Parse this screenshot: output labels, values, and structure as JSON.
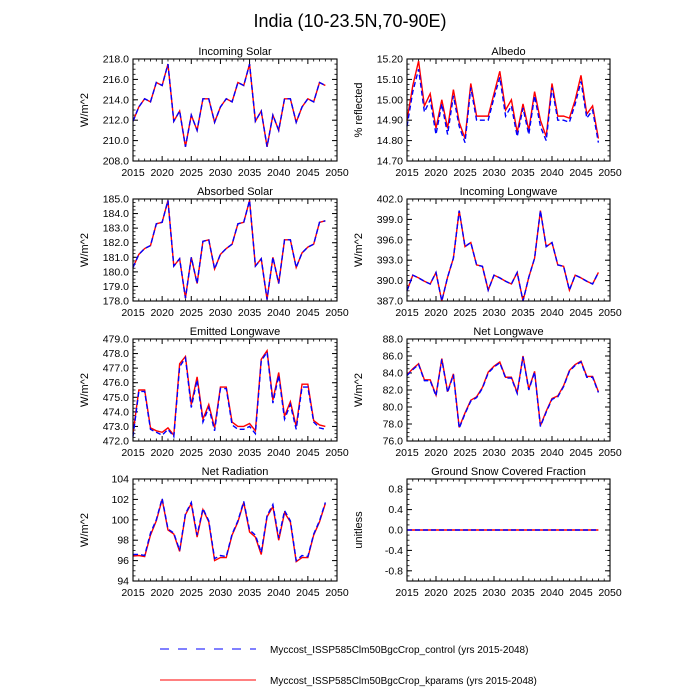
{
  "title": "India (10-23.5N,70-90E)",
  "colors": {
    "control": "#0000ff",
    "kparams": "#ff0000"
  },
  "legend": [
    {
      "label": "Myccost_ISSP585Clm50BgcCrop_control (yrs 2015-2048)",
      "style": "dashed",
      "color": "#0000ff"
    },
    {
      "label": "Myccost_ISSP585Clm50BgcCrop_kparams (yrs 2015-2048)",
      "style": "solid",
      "color": "#ff0000"
    }
  ],
  "chart_data": [
    {
      "type": "line",
      "title": "Incoming Solar",
      "ylabel": "W/m^2",
      "xlim": [
        2015,
        2050
      ],
      "ylim": [
        208,
        218
      ],
      "xticks": [
        "2015",
        "2020",
        "2025",
        "2030",
        "2035",
        "2040",
        "2045",
        "2050"
      ],
      "yticks": [
        "208.0",
        "210.0",
        "212.0",
        "214.0",
        "216.0",
        "218.0"
      ],
      "ytick_values": [
        208,
        210,
        212,
        214,
        216,
        218
      ],
      "x_start": 2015,
      "series": [
        {
          "name": "kparams",
          "values": [
            211.9,
            213.3,
            214.1,
            213.8,
            215.7,
            215.4,
            217.5,
            211.9,
            212.9,
            209.4,
            212.5,
            211.0,
            214.1,
            214.1,
            211.8,
            213.3,
            214.1,
            213.8,
            215.7,
            215.4,
            217.5,
            211.9,
            212.9,
            209.4,
            212.5,
            211.0,
            214.1,
            214.1,
            211.8,
            213.3,
            214.1,
            213.8,
            215.7,
            215.4
          ]
        },
        {
          "name": "control",
          "values": [
            211.9,
            213.3,
            214.1,
            213.8,
            215.7,
            215.4,
            217.5,
            211.9,
            212.9,
            209.4,
            212.5,
            211.0,
            214.1,
            214.1,
            211.8,
            213.3,
            214.1,
            213.8,
            215.7,
            215.4,
            217.5,
            211.9,
            212.9,
            209.4,
            212.5,
            211.0,
            214.1,
            214.1,
            211.8,
            213.3,
            214.1,
            213.8,
            215.7,
            215.4
          ]
        }
      ]
    },
    {
      "type": "line",
      "title": "Albedo",
      "ylabel": "% reflected",
      "xlim": [
        2015,
        2050
      ],
      "ylim": [
        14.7,
        15.2
      ],
      "xticks": [
        "2015",
        "2020",
        "2025",
        "2030",
        "2035",
        "2040",
        "2045",
        "2050"
      ],
      "yticks": [
        "14.70",
        "14.80",
        "14.90",
        "15.00",
        "15.10",
        "15.20"
      ],
      "ytick_values": [
        14.7,
        14.8,
        14.9,
        15.0,
        15.1,
        15.2
      ],
      "x_start": 2015,
      "series": [
        {
          "name": "kparams",
          "values": [
            14.9,
            15.07,
            15.19,
            14.97,
            15.03,
            14.86,
            15.0,
            14.86,
            15.05,
            14.89,
            14.81,
            15.08,
            14.92,
            14.92,
            14.92,
            15.03,
            15.14,
            14.95,
            15.0,
            14.84,
            14.98,
            14.85,
            15.04,
            14.9,
            14.82,
            15.08,
            14.92,
            14.92,
            14.91,
            15.0,
            15.12,
            14.93,
            14.97,
            14.81
          ]
        },
        {
          "name": "control",
          "values": [
            14.87,
            15.04,
            15.15,
            14.94,
            15.0,
            14.83,
            14.98,
            14.83,
            15.02,
            14.87,
            14.79,
            15.06,
            14.9,
            14.9,
            14.9,
            15.01,
            15.11,
            14.92,
            14.97,
            14.82,
            14.96,
            14.83,
            15.02,
            14.87,
            14.8,
            15.06,
            14.9,
            14.9,
            14.89,
            14.98,
            15.09,
            14.91,
            14.95,
            14.79
          ]
        }
      ]
    },
    {
      "type": "line",
      "title": "Absorbed Solar",
      "ylabel": "W/m^2",
      "xlim": [
        2015,
        2050
      ],
      "ylim": [
        178,
        185
      ],
      "xticks": [
        "2015",
        "2020",
        "2025",
        "2030",
        "2035",
        "2040",
        "2045",
        "2050"
      ],
      "yticks": [
        "178.0",
        "179.0",
        "180.0",
        "181.0",
        "182.0",
        "183.0",
        "184.0",
        "185.0"
      ],
      "ytick_values": [
        178,
        179,
        180,
        181,
        182,
        183,
        184,
        185
      ],
      "x_start": 2015,
      "series": [
        {
          "name": "kparams",
          "values": [
            180.3,
            181.2,
            181.6,
            181.8,
            183.3,
            183.4,
            184.9,
            180.4,
            180.9,
            178.2,
            181.0,
            179.2,
            182.1,
            182.2,
            180.2,
            181.2,
            181.6,
            181.9,
            183.3,
            183.4,
            184.9,
            180.4,
            180.9,
            178.1,
            181.0,
            179.2,
            182.2,
            182.2,
            180.3,
            181.3,
            181.7,
            181.9,
            183.4,
            183.5
          ]
        },
        {
          "name": "control",
          "values": [
            180.3,
            181.2,
            181.6,
            181.8,
            183.3,
            183.4,
            184.9,
            180.4,
            180.9,
            178.2,
            181.0,
            179.2,
            182.1,
            182.2,
            180.2,
            181.2,
            181.6,
            181.9,
            183.3,
            183.4,
            184.9,
            180.4,
            180.9,
            178.1,
            181.0,
            179.2,
            182.2,
            182.2,
            180.3,
            181.3,
            181.7,
            181.9,
            183.4,
            183.5
          ]
        }
      ]
    },
    {
      "type": "line",
      "title": "Incoming Longwave",
      "ylabel": "W/m^2",
      "xlim": [
        2015,
        2050
      ],
      "ylim": [
        387,
        402
      ],
      "xticks": [
        "2015",
        "2020",
        "2025",
        "2030",
        "2035",
        "2040",
        "2045",
        "2050"
      ],
      "yticks": [
        "387.0",
        "390.0",
        "393.0",
        "396.0",
        "399.0",
        "402.0"
      ],
      "ytick_values": [
        387,
        390,
        393,
        396,
        399,
        402
      ],
      "x_start": 2015,
      "series": [
        {
          "name": "kparams",
          "values": [
            388.5,
            390.8,
            390.4,
            389.9,
            389.5,
            391.2,
            387.0,
            390.5,
            393.3,
            400.3,
            395.0,
            395.6,
            392.3,
            392.1,
            388.6,
            390.8,
            390.4,
            389.9,
            389.5,
            391.2,
            387.0,
            390.5,
            393.3,
            400.3,
            395.0,
            395.6,
            392.3,
            392.1,
            388.6,
            390.8,
            390.4,
            389.9,
            389.5,
            391.2
          ]
        },
        {
          "name": "control",
          "values": [
            388.5,
            390.8,
            390.4,
            389.9,
            389.5,
            391.2,
            387.0,
            390.5,
            393.3,
            400.3,
            395.0,
            395.6,
            392.3,
            392.1,
            388.6,
            390.8,
            390.4,
            389.9,
            389.5,
            391.2,
            387.0,
            390.5,
            393.3,
            400.3,
            395.0,
            395.6,
            392.3,
            392.1,
            388.6,
            390.8,
            390.4,
            389.9,
            389.5,
            391.2
          ]
        }
      ]
    },
    {
      "type": "line",
      "title": "Emitted Longwave",
      "ylabel": "W/m^2",
      "xlim": [
        2015,
        2050
      ],
      "ylim": [
        472,
        479
      ],
      "xticks": [
        "2015",
        "2020",
        "2025",
        "2030",
        "2035",
        "2040",
        "2045",
        "2050"
      ],
      "yticks": [
        "472.0",
        "473.0",
        "474.0",
        "475.0",
        "476.0",
        "477.0",
        "478.0",
        "479.0"
      ],
      "ytick_values": [
        472,
        473,
        474,
        475,
        476,
        477,
        478,
        479
      ],
      "x_start": 2015,
      "series": [
        {
          "name": "kparams",
          "values": [
            472.5,
            475.5,
            475.5,
            472.9,
            472.7,
            472.6,
            472.9,
            472.4,
            477.3,
            477.8,
            474.5,
            476.4,
            473.5,
            474.5,
            472.9,
            475.7,
            475.7,
            473.3,
            473.0,
            473.0,
            473.2,
            472.7,
            477.6,
            478.2,
            474.8,
            476.7,
            473.7,
            474.7,
            473.0,
            475.9,
            475.9,
            473.4,
            473.1,
            473.0
          ]
        },
        {
          "name": "control",
          "values": [
            472.3,
            475.4,
            475.4,
            472.8,
            472.6,
            472.4,
            472.8,
            472.3,
            477.1,
            477.7,
            474.3,
            476.2,
            473.3,
            474.3,
            472.7,
            475.6,
            475.6,
            473.1,
            472.8,
            472.8,
            473.0,
            472.5,
            477.5,
            478.1,
            474.6,
            476.5,
            473.5,
            474.5,
            472.8,
            475.7,
            475.7,
            473.3,
            472.9,
            472.8
          ]
        }
      ]
    },
    {
      "type": "line",
      "title": "Net Longwave",
      "ylabel": "W/m^2",
      "xlim": [
        2015,
        2050
      ],
      "ylim": [
        76,
        88
      ],
      "xticks": [
        "2015",
        "2020",
        "2025",
        "2030",
        "2035",
        "2040",
        "2045",
        "2050"
      ],
      "yticks": [
        "76.0",
        "78.0",
        "80.0",
        "82.0",
        "84.0",
        "86.0",
        "88.0"
      ],
      "ytick_values": [
        76,
        78,
        80,
        82,
        84,
        86,
        88
      ],
      "x_start": 2015,
      "series": [
        {
          "name": "kparams",
          "values": [
            83.8,
            84.5,
            85.1,
            83.2,
            83.2,
            81.4,
            85.7,
            81.8,
            83.9,
            77.6,
            79.3,
            80.8,
            81.2,
            82.3,
            84.1,
            84.8,
            85.3,
            83.5,
            83.5,
            81.7,
            86.0,
            82.1,
            84.2,
            77.8,
            79.5,
            81.0,
            81.3,
            82.5,
            84.3,
            85.0,
            85.4,
            83.6,
            83.6,
            81.8
          ]
        },
        {
          "name": "control",
          "values": [
            83.7,
            84.4,
            85.0,
            83.1,
            83.1,
            81.3,
            85.6,
            81.7,
            83.8,
            77.5,
            79.2,
            80.7,
            81.1,
            82.2,
            84.0,
            84.7,
            85.2,
            83.4,
            83.4,
            81.6,
            85.9,
            82.0,
            84.1,
            77.7,
            79.4,
            80.9,
            81.2,
            82.4,
            84.2,
            84.9,
            85.3,
            83.5,
            83.5,
            81.7
          ]
        }
      ]
    },
    {
      "type": "line",
      "title": "Net Radiation",
      "ylabel": "W/m^2",
      "xlim": [
        2015,
        2050
      ],
      "ylim": [
        94,
        104
      ],
      "xticks": [
        "2015",
        "2020",
        "2025",
        "2030",
        "2035",
        "2040",
        "2045",
        "2050"
      ],
      "yticks": [
        "94",
        "96",
        "98",
        "100",
        "102",
        "104"
      ],
      "ytick_values": [
        94,
        96,
        98,
        100,
        102,
        104
      ],
      "x_start": 2015,
      "series": [
        {
          "name": "kparams",
          "values": [
            96.45,
            96.5,
            96.4,
            98.5,
            99.9,
            102.0,
            99.0,
            98.6,
            96.9,
            100.5,
            101.6,
            98.3,
            101.0,
            99.8,
            96.0,
            96.3,
            96.3,
            98.5,
            99.8,
            101.7,
            98.8,
            98.3,
            96.6,
            100.3,
            101.3,
            98.0,
            100.7,
            99.8,
            95.9,
            96.3,
            96.3,
            98.5,
            99.8,
            101.6
          ]
        },
        {
          "name": "control",
          "values": [
            96.6,
            96.6,
            96.5,
            98.7,
            100.0,
            102.1,
            99.1,
            98.7,
            97.0,
            100.6,
            101.7,
            98.5,
            101.1,
            99.9,
            96.2,
            96.5,
            96.4,
            98.6,
            99.9,
            101.8,
            99.0,
            98.5,
            96.8,
            100.4,
            101.5,
            98.2,
            100.9,
            99.9,
            96.0,
            96.5,
            96.4,
            98.6,
            99.9,
            101.7
          ]
        }
      ]
    },
    {
      "type": "line",
      "title": "Ground Snow Covered Fraction",
      "ylabel": "unitless",
      "xlim": [
        2015,
        2050
      ],
      "ylim": [
        -1,
        1
      ],
      "xticks": [
        "2015",
        "2020",
        "2025",
        "2030",
        "2035",
        "2040",
        "2045",
        "2050"
      ],
      "yticks": [
        "-0.8",
        "-0.4",
        "0.0",
        "0.4",
        "0.8"
      ],
      "ytick_values": [
        -0.8,
        -0.4,
        0,
        0.4,
        0.8
      ],
      "x_start": 2015,
      "series": [
        {
          "name": "kparams",
          "values": [
            0,
            0,
            0,
            0,
            0,
            0,
            0,
            0,
            0,
            0,
            0,
            0,
            0,
            0,
            0,
            0,
            0,
            0,
            0,
            0,
            0,
            0,
            0,
            0,
            0,
            0,
            0,
            0,
            0,
            0,
            0,
            0,
            0,
            0
          ]
        },
        {
          "name": "control",
          "values": [
            0,
            0,
            0,
            0,
            0,
            0,
            0,
            0,
            0,
            0,
            0,
            0,
            0,
            0,
            0,
            0,
            0,
            0,
            0,
            0,
            0,
            0,
            0,
            0,
            0,
            0,
            0,
            0,
            0,
            0,
            0,
            0,
            0,
            0
          ]
        }
      ]
    }
  ]
}
